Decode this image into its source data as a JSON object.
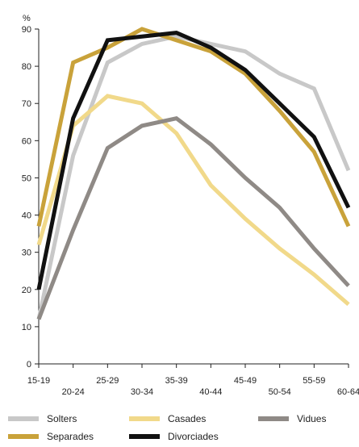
{
  "chart_data": {
    "type": "line",
    "y_unit": "%",
    "ylim": [
      0,
      90
    ],
    "y_ticks": [
      0,
      10,
      20,
      30,
      40,
      50,
      60,
      70,
      80,
      90
    ],
    "categories": [
      "15-19",
      "20-24",
      "25-29",
      "30-34",
      "35-39",
      "40-44",
      "45-49",
      "50-54",
      "55-59",
      "60-64"
    ],
    "grid": false,
    "legend_position": "bottom",
    "series": [
      {
        "name": "Solters",
        "color": "#c8c8c8",
        "values": [
          12,
          56,
          81,
          86,
          88,
          86,
          84,
          78,
          74,
          52
        ]
      },
      {
        "name": "Casades",
        "color": "#f1d98a",
        "values": [
          32,
          64,
          72,
          70,
          62,
          48,
          39,
          31,
          24,
          16
        ]
      },
      {
        "name": "Vidues",
        "color": "#8f8a86",
        "values": [
          12,
          36,
          58,
          64,
          66,
          59,
          50,
          42,
          31,
          21
        ]
      },
      {
        "name": "Separades",
        "color": "#c9a23a",
        "values": [
          37,
          81,
          85,
          90,
          87,
          84,
          78,
          68,
          57,
          37
        ]
      },
      {
        "name": "Divorciades",
        "color": "#111111",
        "values": [
          20,
          66,
          87,
          88,
          89,
          85,
          79,
          70,
          61,
          42
        ]
      }
    ]
  }
}
